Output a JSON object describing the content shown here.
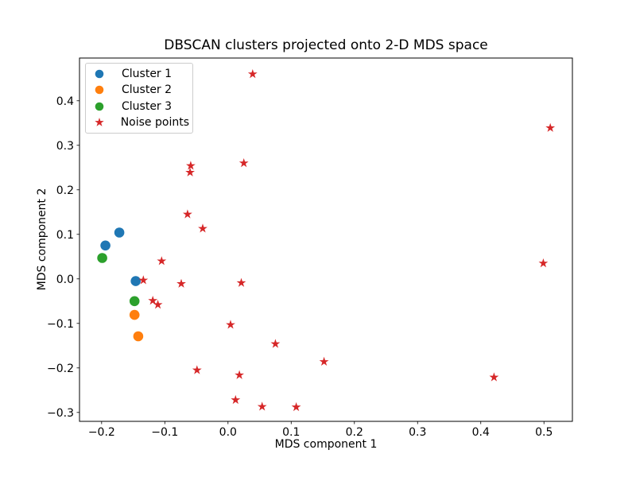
{
  "figure": {
    "background": "#ffffff",
    "text_color": "#000000",
    "spine_color": "#000000"
  },
  "chart_data": {
    "type": "scatter",
    "title": "DBSCAN clusters projected onto 2-D MDS space",
    "xlabel": "MDS component 1",
    "ylabel": "MDS component 2",
    "xlim": [
      -0.235,
      0.545
    ],
    "ylim": [
      -0.32,
      0.496
    ],
    "xticks": [
      -0.2,
      -0.1,
      0.0,
      0.1,
      0.2,
      0.3,
      0.4,
      0.5
    ],
    "xtick_labels": [
      "−0.2",
      "−0.1",
      "0.0",
      "0.1",
      "0.2",
      "0.3",
      "0.4",
      "0.5"
    ],
    "yticks": [
      -0.3,
      -0.2,
      -0.1,
      0.0,
      0.1,
      0.2,
      0.3,
      0.4
    ],
    "ytick_labels": [
      "−0.3",
      "−0.2",
      "−0.1",
      "0.0",
      "0.1",
      "0.2",
      "0.3",
      "0.4"
    ],
    "grid": false,
    "legend_position": "upper left",
    "series": [
      {
        "name": "Cluster 1",
        "marker": "circle",
        "color": "#1f77b4",
        "points": [
          [
            -0.194,
            0.075
          ],
          [
            -0.172,
            0.104
          ],
          [
            -0.146,
            -0.005
          ]
        ]
      },
      {
        "name": "Cluster 2",
        "marker": "circle",
        "color": "#ff7f0e",
        "points": [
          [
            -0.148,
            -0.081
          ],
          [
            -0.142,
            -0.129
          ]
        ]
      },
      {
        "name": "Cluster 3",
        "marker": "circle",
        "color": "#2ca02c",
        "points": [
          [
            -0.199,
            0.047
          ],
          [
            -0.148,
            -0.05
          ]
        ]
      },
      {
        "name": "Noise points",
        "marker": "star",
        "color": "#d62728",
        "points": [
          [
            0.039,
            0.46
          ],
          [
            0.51,
            0.339
          ],
          [
            0.025,
            0.26
          ],
          [
            -0.059,
            0.254
          ],
          [
            -0.06,
            0.239
          ],
          [
            -0.064,
            0.145
          ],
          [
            -0.04,
            0.113
          ],
          [
            -0.105,
            0.04
          ],
          [
            0.499,
            0.035
          ],
          [
            -0.134,
            -0.003
          ],
          [
            0.021,
            -0.009
          ],
          [
            -0.074,
            -0.011
          ],
          [
            -0.119,
            -0.049
          ],
          [
            -0.111,
            -0.058
          ],
          [
            0.004,
            -0.103
          ],
          [
            0.075,
            -0.146
          ],
          [
            0.152,
            -0.186
          ],
          [
            -0.049,
            -0.205
          ],
          [
            0.018,
            -0.216
          ],
          [
            0.421,
            -0.221
          ],
          [
            0.012,
            -0.272
          ],
          [
            0.054,
            -0.287
          ],
          [
            0.108,
            -0.288
          ]
        ]
      }
    ]
  },
  "legend": {
    "items": [
      {
        "label": "Cluster 1",
        "color": "#1f77b4",
        "marker": "circle"
      },
      {
        "label": "Cluster 2",
        "color": "#ff7f0e",
        "marker": "circle"
      },
      {
        "label": "Cluster 3",
        "color": "#2ca02c",
        "marker": "circle"
      },
      {
        "label": "Noise points",
        "color": "#d62728",
        "marker": "star"
      }
    ]
  }
}
